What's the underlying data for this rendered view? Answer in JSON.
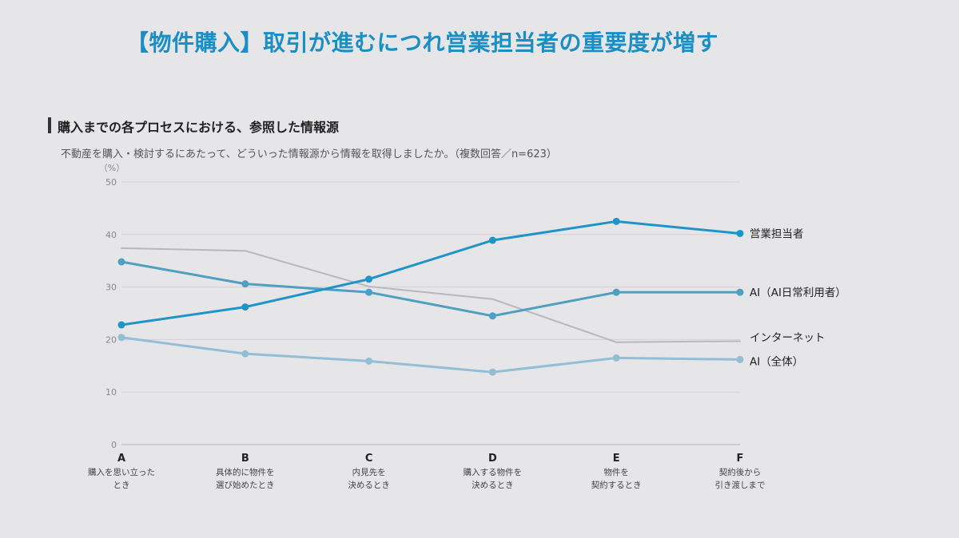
{
  "header": {
    "title": "【物件購入】取引が進むにつれ営業担当者の重要度が増す",
    "section_title": "購入までの各プロセスにおける、参照した情報源",
    "question": "不動産を購入・検討するにあたって、どういった情報源から情報を取得しましたか。（複数回答／n=623）"
  },
  "colors": {
    "sales": "#1f94c8",
    "ai_daily": "#4e9fc0",
    "internet": "#b9b7bd",
    "ai_all": "#92bfd3"
  },
  "chart_data": {
    "type": "line",
    "unit_label": "（%）",
    "ylim": [
      0,
      50
    ],
    "yticks": [
      "0",
      "10",
      "20",
      "30",
      "40",
      "50"
    ],
    "grid": true,
    "categories": [
      {
        "letter": "A",
        "desc": [
          "購入を思い立った",
          "とき"
        ]
      },
      {
        "letter": "B",
        "desc": [
          "具体的に物件を",
          "選び始めたとき"
        ]
      },
      {
        "letter": "C",
        "desc": [
          "内見先を",
          "決めるとき"
        ]
      },
      {
        "letter": "D",
        "desc": [
          "購入する物件を",
          "決めるとき"
        ]
      },
      {
        "letter": "E",
        "desc": [
          "物件を",
          "契約するとき"
        ]
      },
      {
        "letter": "F",
        "desc": [
          "契約後から",
          "引き渡しまで"
        ]
      }
    ],
    "series": [
      {
        "name": "営業担当者",
        "key": "sales",
        "values": [
          22.8,
          26.2,
          31.5,
          38.9,
          42.5,
          40.2
        ],
        "markers": true,
        "width": 3
      },
      {
        "name": "AI（AI日常利用者）",
        "key": "ai_daily",
        "values": [
          34.8,
          30.6,
          29.0,
          24.5,
          29.0,
          29.0
        ],
        "markers": true,
        "width": 3
      },
      {
        "name": "インターネット",
        "key": "internet",
        "values": [
          37.4,
          36.9,
          30.1,
          27.7,
          19.5,
          19.7
        ],
        "markers": false,
        "width": 2
      },
      {
        "name": "AI（全体）",
        "key": "ai_all",
        "values": [
          20.4,
          17.3,
          15.9,
          13.8,
          16.5,
          16.2
        ],
        "markers": true,
        "width": 3
      }
    ]
  }
}
